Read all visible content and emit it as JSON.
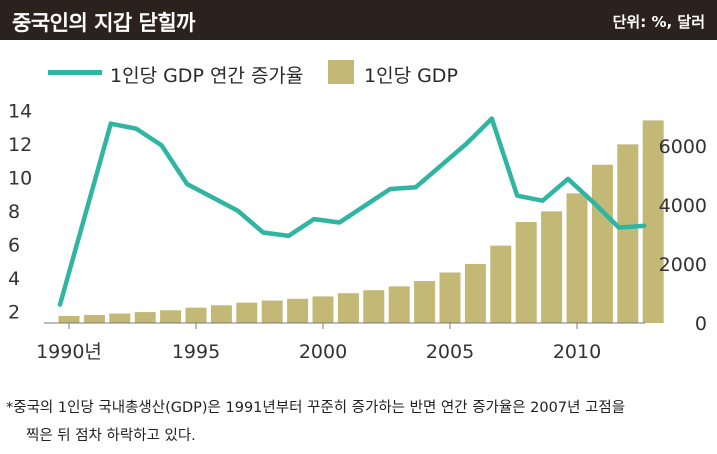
{
  "header": {
    "title": "중국인의 지갑 닫힐까",
    "unit": "단위: %, 달러"
  },
  "legend": {
    "line_label": "1인당 GDP 연간 증가율",
    "bar_label": "1인당 GDP"
  },
  "footnote": {
    "line1": "*중국의 1인당 국내총생산(GDP)은 1991년부터 꾸준히 증가하는 반면 연간 증가율은 2007년 고점을",
    "line2": "찍은 뒤 점차 하락하고 있다."
  },
  "colors": {
    "header_bg": "#2b221d",
    "line": "#2fb5a1",
    "bar": "#c3b875"
  },
  "chart_data": {
    "type": "bar",
    "x_tick_labels": [
      "1990년",
      "1995",
      "2000",
      "2005",
      "2010"
    ],
    "x_tick_years": [
      1990,
      1995,
      2000,
      2005,
      2010
    ],
    "left_axis_ticks": [
      2,
      4,
      6,
      8,
      10,
      12,
      14
    ],
    "right_axis_ticks": [
      0,
      2000,
      4000,
      6000
    ],
    "left_ylim": [
      1,
      14
    ],
    "right_ylim": [
      0,
      6800
    ],
    "series": [
      {
        "name": "1인당 GDP",
        "type": "bar",
        "axis": "right",
        "x": [
          1990,
          1991,
          1992,
          1993,
          1994,
          1995,
          1996,
          1997,
          1998,
          1999,
          2000,
          2001,
          2002,
          2003,
          2004,
          2005,
          2006,
          2007,
          2008,
          2009,
          2010,
          2011,
          2012,
          2013
        ],
        "values": [
          240,
          270,
          320,
          370,
          430,
          520,
          600,
          690,
          760,
          820,
          900,
          1010,
          1110,
          1240,
          1420,
          1710,
          2000,
          2620,
          3420,
          3780,
          4390,
          5360,
          6050,
          6860
        ]
      },
      {
        "name": "1인당 GDP 연간 증가율",
        "type": "line",
        "axis": "left",
        "x": [
          1990,
          1992,
          1993,
          1994,
          1995,
          1996,
          1997,
          1998,
          1999,
          2000,
          2001,
          2002,
          2003,
          2004,
          2005,
          2006,
          2007,
          2008,
          2009,
          2010,
          2011,
          2012,
          2013
        ],
        "values": [
          2.4,
          13.2,
          12.9,
          11.9,
          9.6,
          8.8,
          8.0,
          6.7,
          6.5,
          7.5,
          7.3,
          8.3,
          9.3,
          9.4,
          10.7,
          12.0,
          13.5,
          8.9,
          8.6,
          9.9,
          8.5,
          7.0,
          7.1
        ]
      }
    ]
  }
}
